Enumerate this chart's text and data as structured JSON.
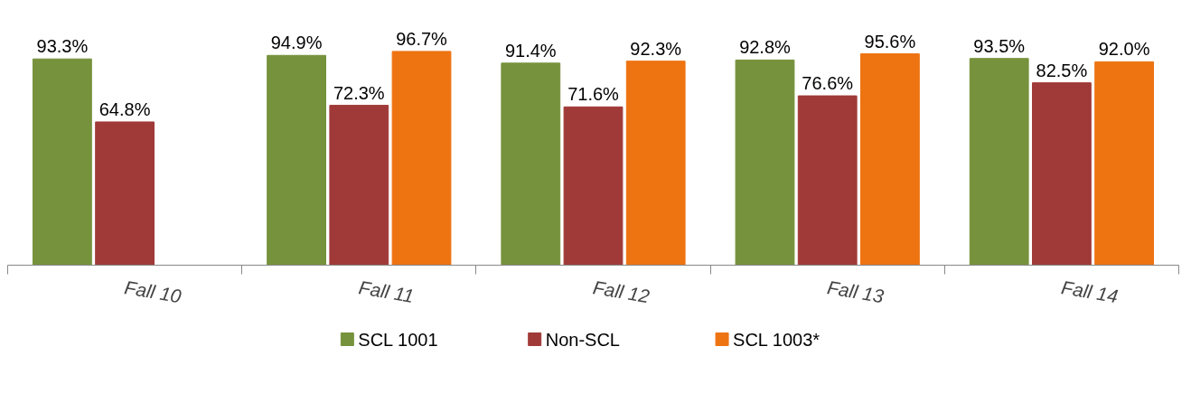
{
  "chart_data": {
    "type": "bar",
    "categories": [
      "Fall 10",
      "Fall 11",
      "Fall 12",
      "Fall 13",
      "Fall 14"
    ],
    "tick_labels": "x",
    "series": [
      {
        "name": "SCL 1001",
        "color": "#76923c",
        "values": [
          93.3,
          94.9,
          91.4,
          92.8,
          93.5
        ],
        "value_labels": [
          "93.3%",
          "94.9%",
          "91.4%",
          "92.8%",
          "93.5%"
        ]
      },
      {
        "name": "Non-SCL",
        "color": "#a03a38",
        "values": [
          64.8,
          72.3,
          71.6,
          76.6,
          82.5
        ],
        "value_labels": [
          "64.8%",
          "72.3%",
          "71.6%",
          "76.6%",
          "82.5%"
        ]
      },
      {
        "name": "SCL 1003*",
        "color": "#ee7412",
        "values": [
          null,
          96.7,
          92.3,
          95.6,
          92.0
        ],
        "value_labels": [
          null,
          "96.7%",
          "92.3%",
          "95.6%",
          "92.0%"
        ]
      }
    ],
    "legend": "bottom"
  }
}
